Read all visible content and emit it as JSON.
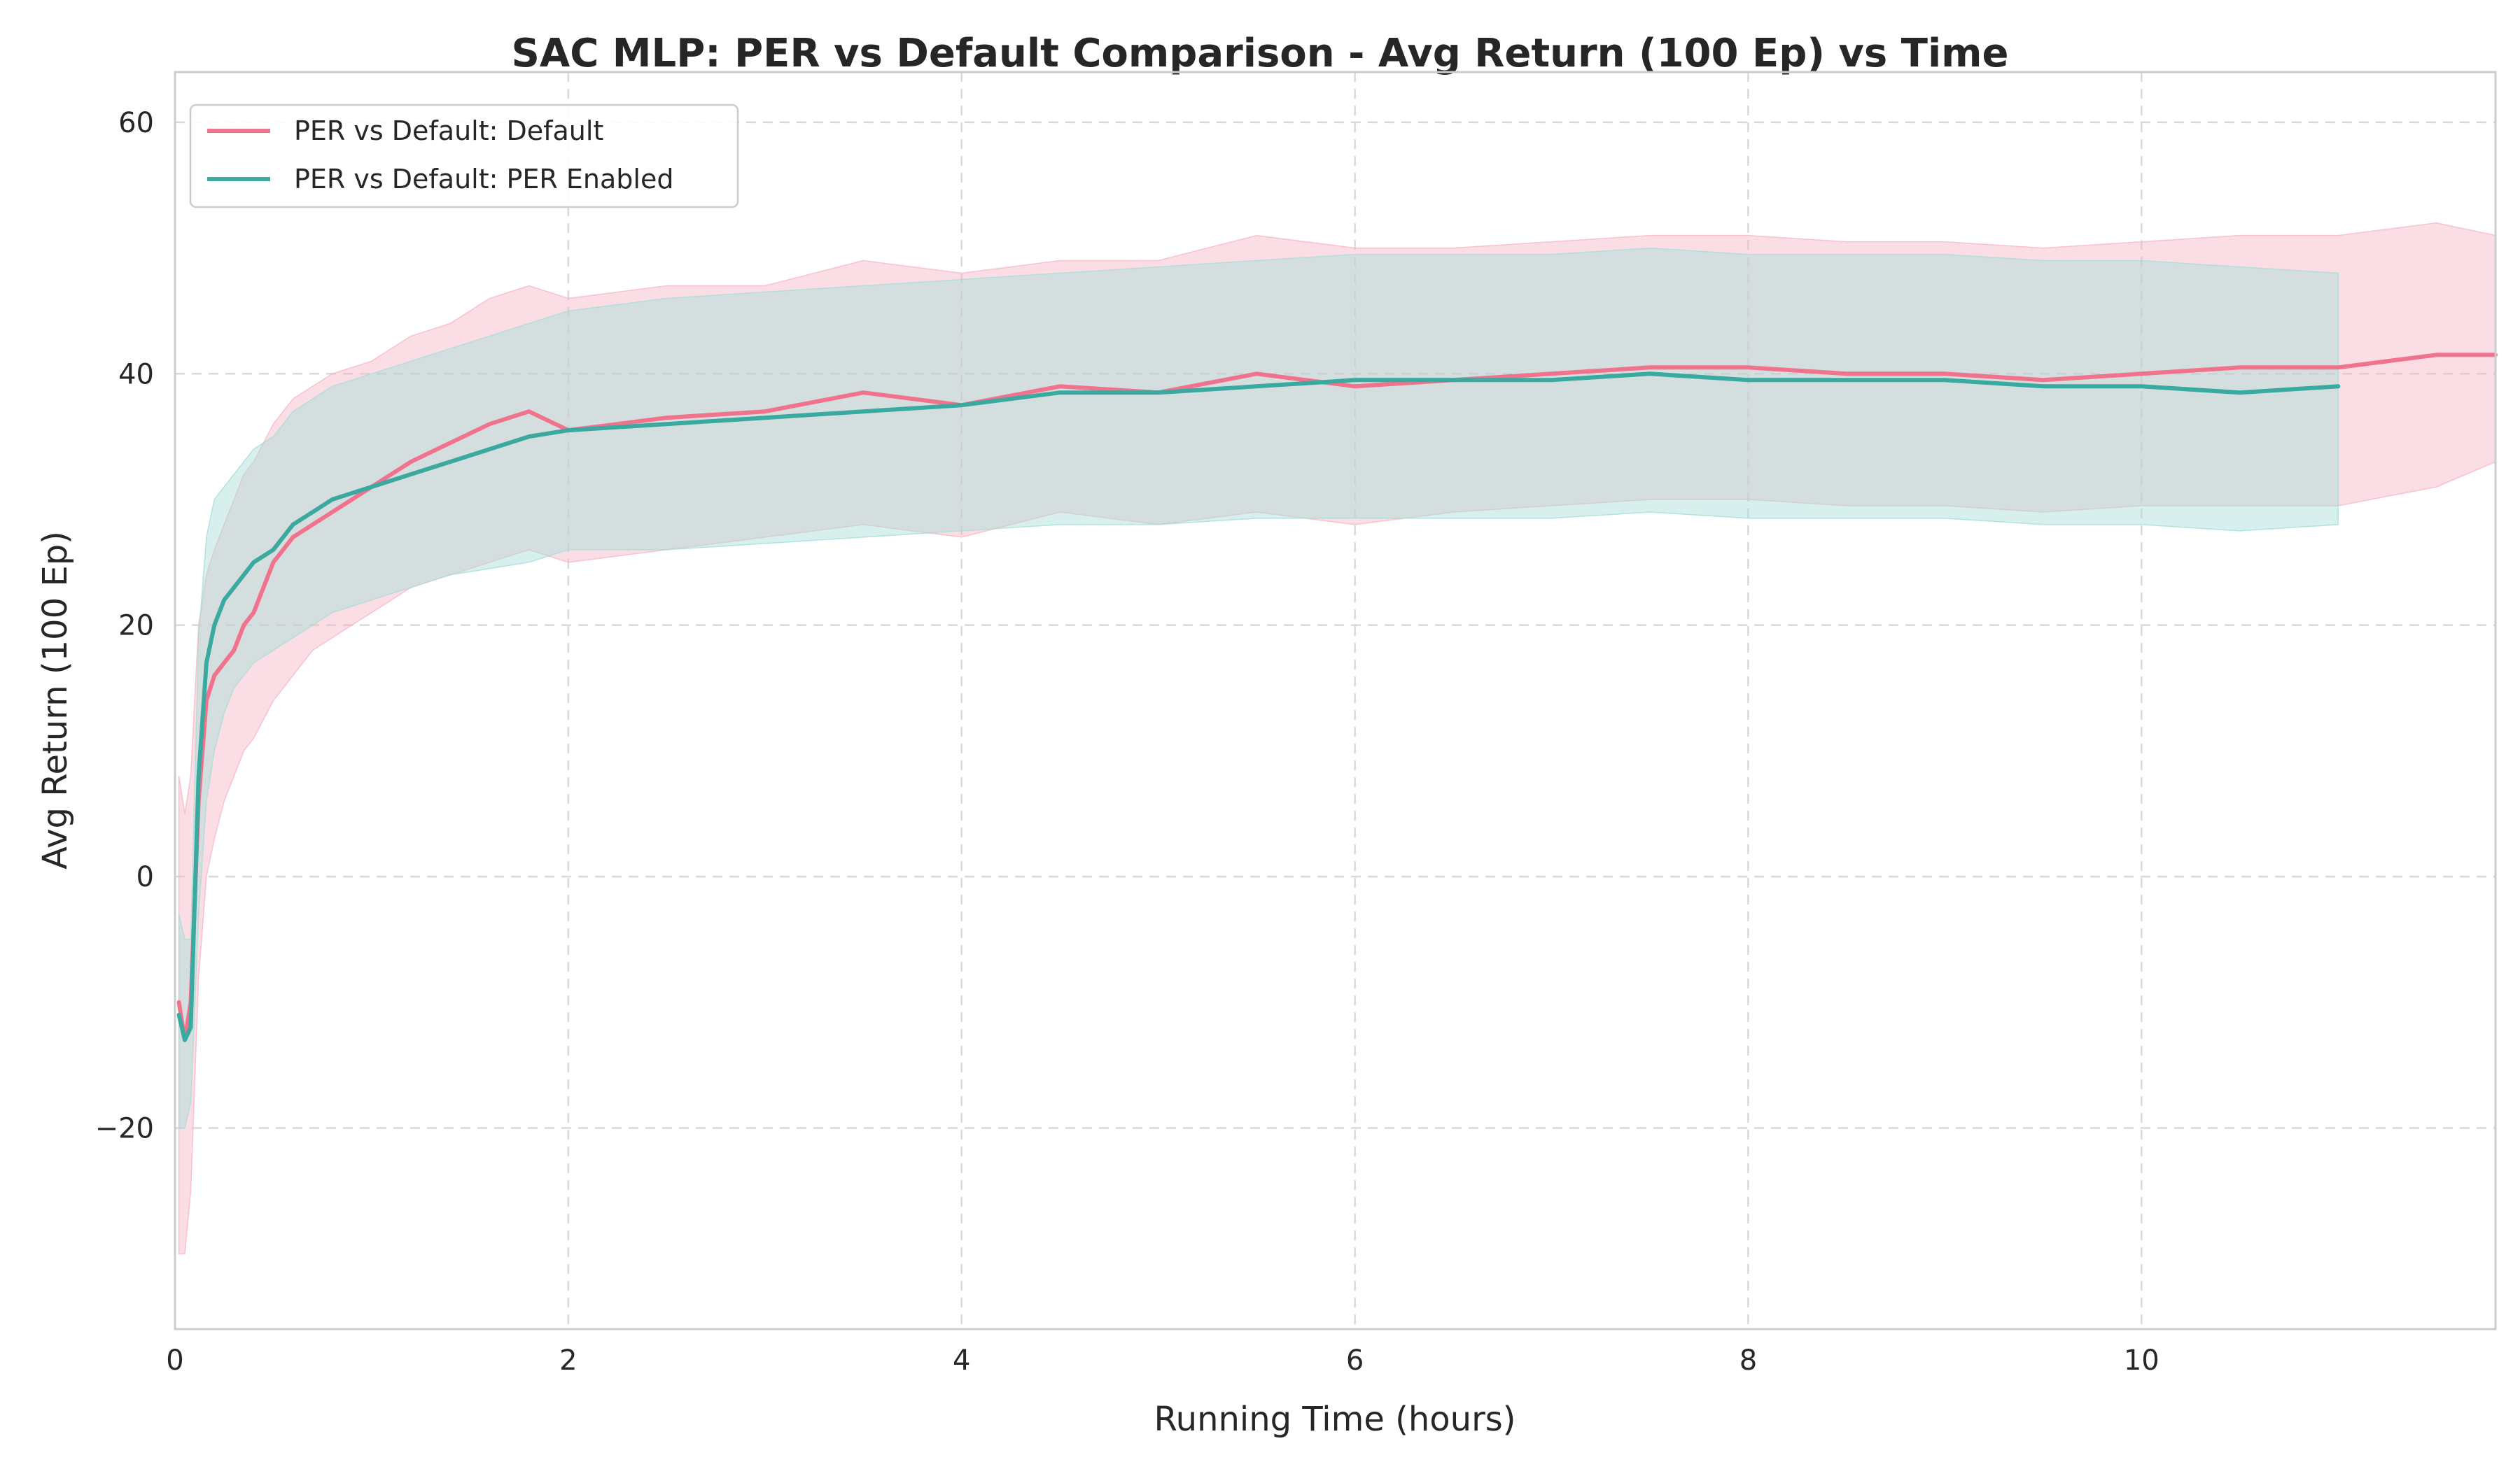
{
  "chart_data": {
    "type": "line",
    "title": "SAC MLP: PER vs Default Comparison - Avg Return (100 Ep) vs Time",
    "xlabel": "Running Time (hours)",
    "ylabel": "Avg Return (100 Ep)",
    "xlim": [
      0,
      11.8
    ],
    "ylim": [
      -36,
      64
    ],
    "xticks": [
      0,
      2,
      4,
      6,
      8,
      10
    ],
    "xtick_labels": [
      "0",
      "2",
      "4",
      "6",
      "8",
      "10"
    ],
    "yticks": [
      -20,
      0,
      20,
      40,
      60
    ],
    "ytick_labels": [
      "−20",
      "0",
      "20",
      "40",
      "60"
    ],
    "grid": true,
    "legend_position": "top-left",
    "series": [
      {
        "name": "PER vs Default: Default",
        "color": "#f0728c",
        "band_color": "#f7b6c5",
        "x": [
          0.02,
          0.05,
          0.08,
          0.12,
          0.16,
          0.2,
          0.25,
          0.3,
          0.35,
          0.4,
          0.5,
          0.6,
          0.7,
          0.8,
          1.0,
          1.2,
          1.4,
          1.6,
          1.8,
          2.0,
          2.5,
          3.0,
          3.5,
          4.0,
          4.5,
          5.0,
          5.5,
          6.0,
          6.5,
          7.0,
          7.5,
          8.0,
          8.5,
          9.0,
          9.5,
          10.0,
          10.5,
          11.0,
          11.5,
          11.8
        ],
        "mean": [
          -10,
          -13,
          -10,
          6,
          14,
          16,
          17,
          18,
          20,
          21,
          25,
          27,
          28,
          29,
          31,
          33,
          34.5,
          36,
          37,
          35.5,
          36.5,
          37,
          38.5,
          37.5,
          39,
          38.5,
          40,
          39,
          39.5,
          40,
          40.5,
          40.5,
          40,
          40,
          39.5,
          40,
          40.5,
          40.5,
          41.5,
          41.5
        ],
        "lower": [
          -30,
          -30,
          -25,
          -8,
          0,
          3,
          6,
          8,
          10,
          11,
          14,
          16,
          18,
          19,
          21,
          23,
          24,
          25,
          26,
          25,
          26,
          27,
          28,
          27,
          29,
          28,
          29,
          28,
          29,
          29.5,
          30,
          30,
          29.5,
          29.5,
          29,
          29.5,
          29.5,
          29.5,
          31,
          33
        ],
        "upper": [
          8,
          5,
          8,
          20,
          24,
          26,
          28,
          30,
          32,
          33,
          36,
          38,
          39,
          40,
          41,
          43,
          44,
          46,
          47,
          46,
          47,
          47,
          49,
          48,
          49,
          49,
          51,
          50,
          50,
          50.5,
          51,
          51,
          50.5,
          50.5,
          50,
          50.5,
          51,
          51,
          52,
          51
        ]
      },
      {
        "name": "PER vs Default: PER Enabled",
        "color": "#3aa99f",
        "band_color": "#a6ddd6",
        "x": [
          0.02,
          0.05,
          0.08,
          0.12,
          0.16,
          0.2,
          0.25,
          0.3,
          0.35,
          0.4,
          0.5,
          0.6,
          0.7,
          0.8,
          1.0,
          1.2,
          1.4,
          1.6,
          1.8,
          2.0,
          2.5,
          3.0,
          3.5,
          4.0,
          4.5,
          5.0,
          5.5,
          6.0,
          6.5,
          7.0,
          7.5,
          8.0,
          8.5,
          9.0,
          9.5,
          10.0,
          10.5,
          11.0
        ],
        "mean": [
          -11,
          -13,
          -12,
          8,
          17,
          20,
          22,
          23,
          24,
          25,
          26,
          28,
          29,
          30,
          31,
          32,
          33,
          34,
          35,
          35.5,
          36,
          36.5,
          37,
          37.5,
          38.5,
          38.5,
          39,
          39.5,
          39.5,
          39.5,
          40,
          39.5,
          39.5,
          39.5,
          39,
          39,
          38.5,
          39
        ],
        "lower": [
          -20,
          -20,
          -18,
          -3,
          6,
          10,
          13,
          15,
          16,
          17,
          18,
          19,
          20,
          21,
          22,
          23,
          24,
          24.5,
          25,
          26,
          26,
          26.5,
          27,
          27.5,
          28,
          28,
          28.5,
          28.5,
          28.5,
          28.5,
          29,
          28.5,
          28.5,
          28.5,
          28,
          28,
          27.5,
          28
        ],
        "upper": [
          -3,
          -5,
          -5,
          19,
          27,
          30,
          31,
          32,
          33,
          34,
          35,
          37,
          38,
          39,
          40,
          41,
          42,
          43,
          44,
          45,
          46,
          46.5,
          47,
          47.5,
          48,
          48.5,
          49,
          49.5,
          49.5,
          49.5,
          50,
          49.5,
          49.5,
          49.5,
          49,
          49,
          48.5,
          48
        ]
      }
    ]
  }
}
